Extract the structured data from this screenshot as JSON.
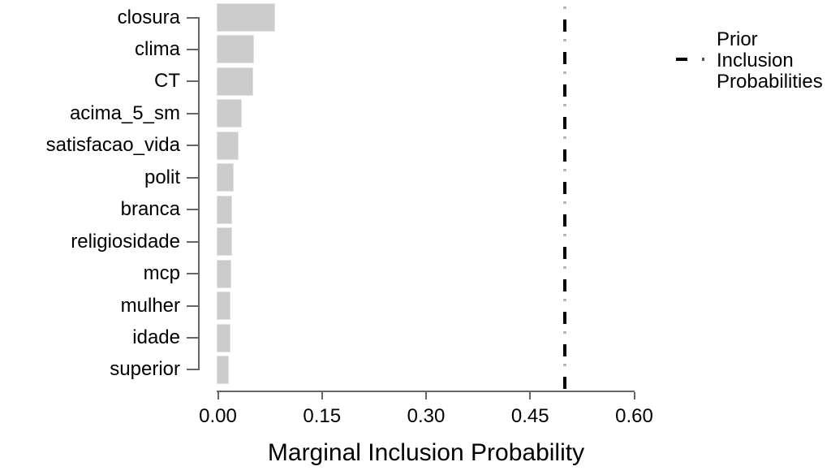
{
  "chart_data": {
    "type": "bar",
    "orientation": "horizontal",
    "title": "",
    "xlabel": "Marginal Inclusion Probability",
    "ylabel": "",
    "categories": [
      "closura",
      "clima",
      "CT",
      "acima_5_sm",
      "satisfacao_vida",
      "polit",
      "branca",
      "religiosidade",
      "mcp",
      "mulher",
      "idade",
      "superior"
    ],
    "values": [
      0.082,
      0.051,
      0.05,
      0.034,
      0.029,
      0.022,
      0.02,
      0.02,
      0.019,
      0.018,
      0.017,
      0.015
    ],
    "xlim": [
      0,
      0.6
    ],
    "xtick_values": [
      0.0,
      0.15,
      0.3,
      0.45,
      0.6
    ],
    "xtick_labels": [
      "0.00",
      "0.15",
      "0.30",
      "0.45",
      "0.60"
    ],
    "grid": false,
    "legend_position": "right",
    "reference_line": {
      "name": "Prior Inclusion Probabilities",
      "value": 0.5,
      "linetype": "dotdash"
    }
  },
  "legend": {
    "lines": [
      "Prior",
      "Inclusion",
      "Probabilities"
    ]
  },
  "colors": {
    "bar": "#cccccc",
    "bar_edge": "#e2e2e2",
    "axis": "#666666",
    "text": "#000000",
    "prior_line": "#000000",
    "prior_line_dot": "#b3b3b3",
    "legend_dot": "#555555"
  }
}
